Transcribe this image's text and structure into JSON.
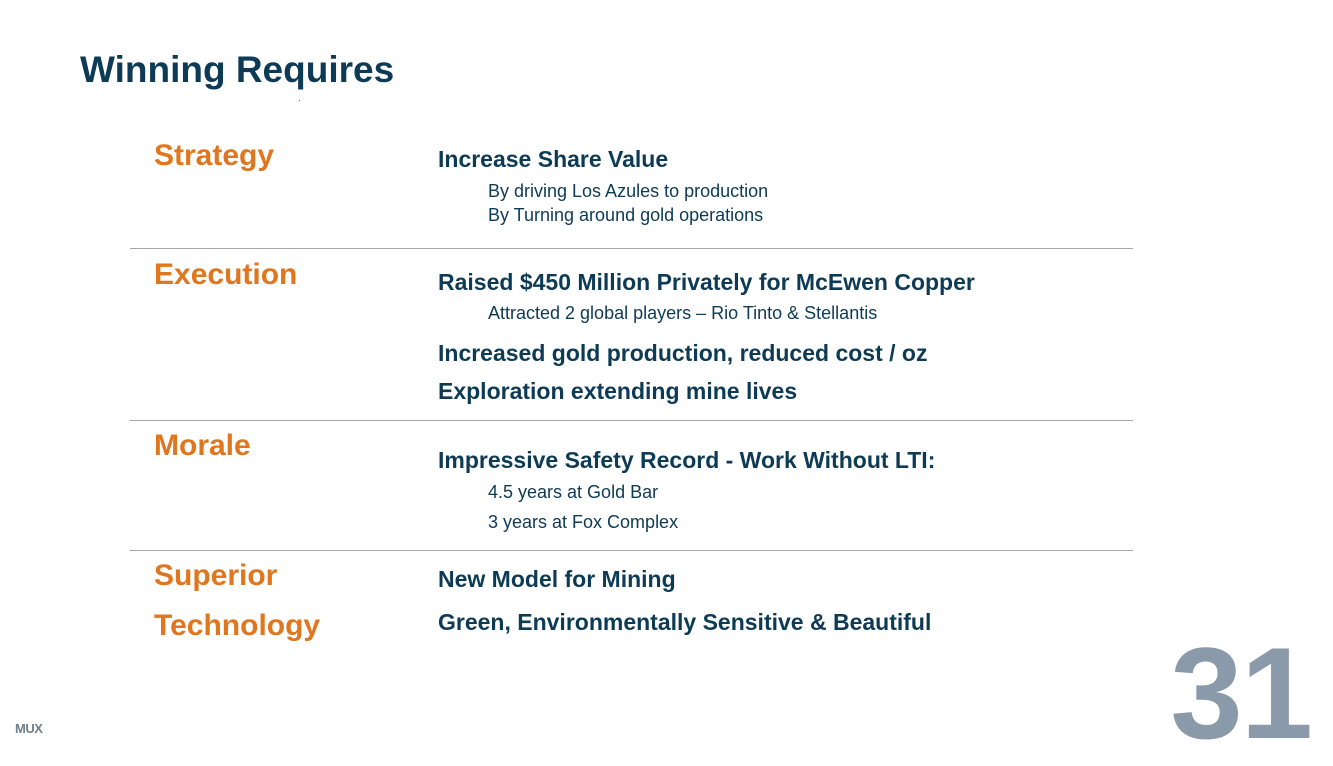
{
  "title": "Winning Requires",
  "sections": {
    "strategy": {
      "label": "Strategy",
      "heading": "Increase Share Value",
      "points": [
        "By driving Los Azules to production",
        "By Turning around gold operations"
      ]
    },
    "execution": {
      "label": "Execution",
      "heading": "Raised $450 Million Privately for McEwen Copper",
      "point": "Attracted 2 global players – Rio Tinto & Stellantis",
      "heading2": "Increased gold production, reduced cost / oz",
      "heading3": "Exploration extending mine lives"
    },
    "morale": {
      "label": "Morale",
      "heading": "Impressive Safety Record - Work Without LTI:",
      "points": [
        "4.5 years at Gold Bar",
        "3 years at Fox Complex"
      ]
    },
    "technology": {
      "label_line1": "Superior",
      "label_line2": "Technology",
      "heading": "New Model for Mining",
      "heading2": "Green, Environmentally Sensitive & Beautiful"
    }
  },
  "footer": {
    "logo": "MUX",
    "page_number": "31"
  },
  "colors": {
    "title": "#0d3a55",
    "category": "#e0761e",
    "body_text": "#0d3a55",
    "divider": "#a6a6a6",
    "page_number": "#8a9aab"
  }
}
